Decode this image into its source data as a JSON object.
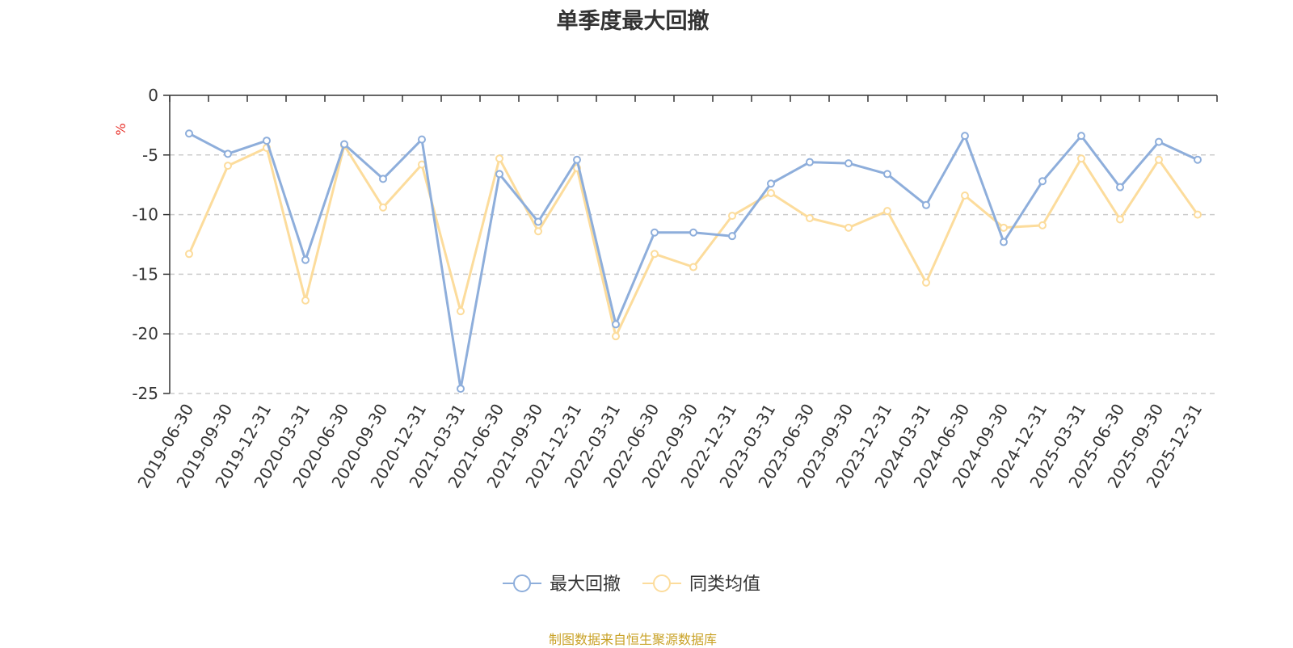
{
  "chart_data": {
    "type": "line",
    "title": "单季度最大回撤",
    "ylabel": "%",
    "ylim": [
      -25,
      0
    ],
    "yticks": [
      "0",
      "-5",
      "-10",
      "-15",
      "-20",
      "-25"
    ],
    "ytick_values": [
      0,
      -5,
      -10,
      -15,
      -20,
      -25
    ],
    "grid": "horizontal dashed",
    "legend_position": "bottom-center",
    "categories": [
      "2019-06-30",
      "2019-09-30",
      "2019-12-31",
      "2020-03-31",
      "2020-06-30",
      "2020-09-30",
      "2020-12-31",
      "2021-03-31",
      "2021-06-30",
      "2021-09-30",
      "2021-12-31",
      "2022-03-31",
      "2022-06-30",
      "2022-09-30",
      "2022-12-31",
      "2023-03-31",
      "2023-06-30",
      "2023-09-30",
      "2023-12-31",
      "2024-03-31",
      "2024-06-30",
      "2024-09-30",
      "2024-12-31",
      "2025-03-31",
      "2025-06-30",
      "2025-09-30",
      "2025-12-31"
    ],
    "series": [
      {
        "name": "最大回撤",
        "color": "#8eaedb",
        "values": [
          -3.2,
          -4.9,
          -3.8,
          -13.8,
          -4.1,
          -7.0,
          -3.7,
          -24.6,
          -6.6,
          -10.6,
          -5.4,
          -19.2,
          -11.5,
          -11.5,
          -11.8,
          -7.4,
          -5.6,
          -5.7,
          -6.6,
          -9.2,
          -3.4,
          -12.3,
          -7.2,
          -3.4,
          -7.7,
          -3.9,
          -5.4
        ]
      },
      {
        "name": "同类均值",
        "color": "#fcdc9c",
        "values": [
          -13.3,
          -5.9,
          -4.4,
          -17.2,
          -4.2,
          -9.4,
          -5.8,
          -18.1,
          -5.3,
          -11.4,
          -6.1,
          -20.2,
          -13.3,
          -14.4,
          -10.1,
          -8.2,
          -10.3,
          -11.1,
          -9.7,
          -15.7,
          -8.4,
          -11.1,
          -10.9,
          -5.3,
          -10.4,
          -5.4,
          -10.0
        ]
      }
    ]
  },
  "source_text": "制图数据来自恒生聚源数据库"
}
